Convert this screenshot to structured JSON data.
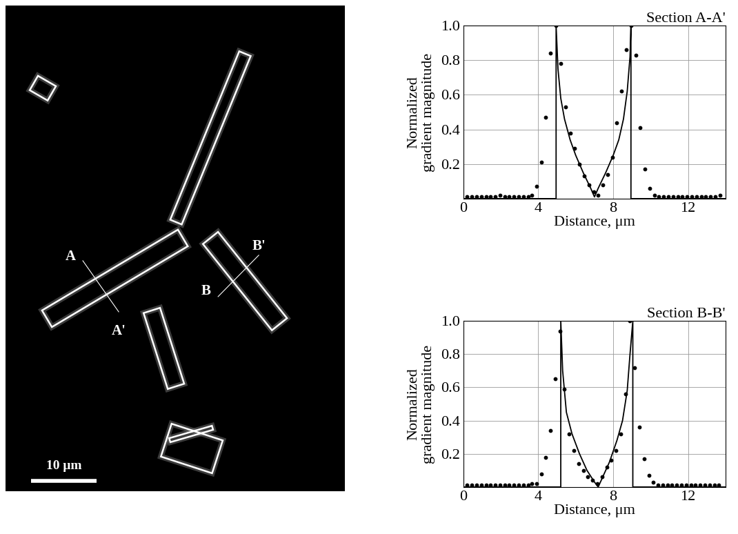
{
  "image": {
    "labels": [
      "A",
      "A'",
      "B",
      "B'"
    ],
    "scale_bar": {
      "label": "10 μm",
      "length": 10
    }
  },
  "chart_data": [
    {
      "type": "scatter",
      "title": "Section A-A'",
      "x_label": "Distance, μm",
      "y_label": "Normalized\ngradient magnitude",
      "xlim": [
        0,
        14
      ],
      "xticks": [
        0,
        4,
        8,
        12
      ],
      "ylim": [
        0,
        1.0
      ],
      "yticks": [
        0.2,
        0.4,
        0.6,
        0.8,
        1.0
      ],
      "grid": true,
      "series": [
        {
          "type": "scatter",
          "color": "#000000",
          "marker": "o",
          "x": [
            0.2,
            0.45,
            0.7,
            0.95,
            1.2,
            1.45,
            1.7,
            1.95,
            2.2,
            2.45,
            2.7,
            2.95,
            3.2,
            3.45,
            3.65,
            3.9,
            4.15,
            4.4,
            4.65,
            4.95,
            5.2,
            5.45,
            5.7,
            5.95,
            6.2,
            6.45,
            6.7,
            6.95,
            7.2,
            7.45,
            7.7,
            7.95,
            8.2,
            8.45,
            8.7,
            8.95,
            9.2,
            9.45,
            9.7,
            9.95,
            10.2,
            10.45,
            10.7,
            10.95,
            11.2,
            11.45,
            11.7,
            11.95,
            12.2,
            12.45,
            12.7,
            12.95,
            13.2,
            13.45,
            13.7
          ],
          "values": [
            0.01,
            0.01,
            0.01,
            0.01,
            0.01,
            0.01,
            0.01,
            0.02,
            0.01,
            0.01,
            0.01,
            0.01,
            0.01,
            0.01,
            0.02,
            0.07,
            0.21,
            0.47,
            0.84,
            1.0,
            0.78,
            0.53,
            0.38,
            0.29,
            0.2,
            0.13,
            0.08,
            0.04,
            0.02,
            0.08,
            0.14,
            0.24,
            0.44,
            0.62,
            0.86,
            1.0,
            0.83,
            0.41,
            0.17,
            0.06,
            0.02,
            0.01,
            0.01,
            0.01,
            0.01,
            0.01,
            0.01,
            0.01,
            0.01,
            0.01,
            0.01,
            0.01,
            0.01,
            0.01,
            0.02
          ]
        },
        {
          "type": "line",
          "color": "#000000",
          "line_style": "solid",
          "x": [
            0,
            4.95,
            4.95,
            5.05,
            5.2,
            5.4,
            5.7,
            6.0,
            6.4,
            6.8,
            7.0,
            7.2,
            7.6,
            8.0,
            8.3,
            8.55,
            8.75,
            8.9,
            8.95,
            8.95,
            14
          ],
          "values": [
            0,
            0,
            1.0,
            0.75,
            0.58,
            0.46,
            0.34,
            0.25,
            0.15,
            0.06,
            0.01,
            0.06,
            0.15,
            0.25,
            0.34,
            0.46,
            0.62,
            0.82,
            1.0,
            0,
            0
          ]
        }
      ]
    },
    {
      "type": "scatter",
      "title": "Section B-B'",
      "x_label": "Distance, μm",
      "y_label": "Normalized\ngradient magnitude",
      "xlim": [
        0,
        14
      ],
      "xticks": [
        0,
        4,
        8,
        12
      ],
      "ylim": [
        0,
        1.0
      ],
      "yticks": [
        0.2,
        0.4,
        0.6,
        0.8,
        1.0
      ],
      "grid": true,
      "series": [
        {
          "type": "scatter",
          "color": "#000000",
          "marker": "o",
          "x": [
            0.2,
            0.45,
            0.7,
            0.95,
            1.2,
            1.45,
            1.7,
            1.95,
            2.2,
            2.45,
            2.7,
            2.95,
            3.2,
            3.45,
            3.65,
            3.9,
            4.15,
            4.4,
            4.65,
            4.9,
            5.15,
            5.4,
            5.65,
            5.9,
            6.15,
            6.4,
            6.65,
            6.9,
            7.15,
            7.4,
            7.65,
            7.9,
            8.15,
            8.4,
            8.65,
            8.9,
            9.15,
            9.4,
            9.65,
            9.9,
            10.15,
            10.4,
            10.65,
            10.9,
            11.15,
            11.4,
            11.65,
            11.9,
            12.15,
            12.4,
            12.65,
            12.9,
            13.15,
            13.4,
            13.65
          ],
          "values": [
            0.01,
            0.01,
            0.01,
            0.01,
            0.01,
            0.01,
            0.01,
            0.01,
            0.01,
            0.01,
            0.01,
            0.01,
            0.01,
            0.01,
            0.02,
            0.02,
            0.08,
            0.18,
            0.34,
            0.65,
            0.94,
            0.59,
            0.32,
            0.22,
            0.14,
            0.1,
            0.06,
            0.04,
            0.02,
            0.06,
            0.12,
            0.16,
            0.22,
            0.32,
            0.56,
            1.0,
            0.72,
            0.36,
            0.17,
            0.07,
            0.03,
            0.01,
            0.01,
            0.01,
            0.01,
            0.01,
            0.01,
            0.01,
            0.01,
            0.01,
            0.01,
            0.01,
            0.01,
            0.01,
            0.01
          ]
        },
        {
          "type": "line",
          "color": "#000000",
          "line_style": "solid",
          "x": [
            0,
            5.2,
            5.2,
            5.3,
            5.5,
            5.8,
            6.2,
            6.6,
            7.0,
            7.2,
            7.4,
            7.8,
            8.2,
            8.5,
            8.75,
            8.9,
            9.05,
            9.05,
            14
          ],
          "values": [
            0,
            0,
            1.0,
            0.7,
            0.45,
            0.32,
            0.2,
            0.1,
            0.03,
            0.0,
            0.05,
            0.15,
            0.28,
            0.4,
            0.58,
            0.8,
            1.0,
            0,
            0
          ]
        }
      ]
    }
  ]
}
